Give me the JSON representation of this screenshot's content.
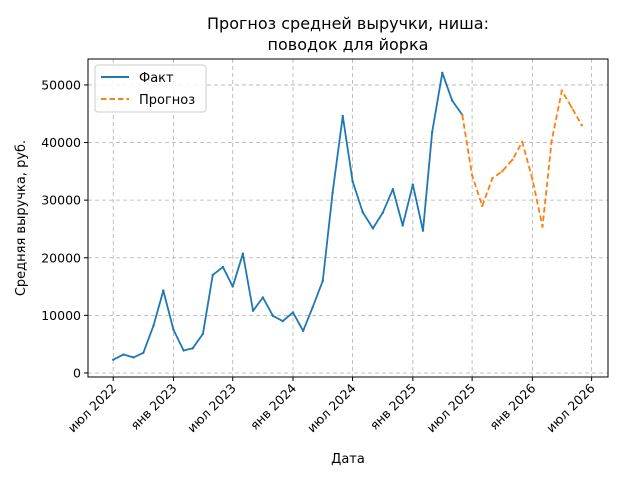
{
  "chart_data": {
    "type": "line",
    "title_lines": [
      "Прогноз средней выручки, ниша:",
      "поводок для йорка"
    ],
    "xlabel": "Дата",
    "ylabel": "Средняя выручка, руб.",
    "ylim": [
      -700,
      54500
    ],
    "xlim": [
      "2022-04-15",
      "2026-08-20"
    ],
    "grid": true,
    "legend_position": "top-left",
    "x_ticks": [
      {
        "date": "2022-07-01",
        "label": "июл 2022"
      },
      {
        "date": "2023-01-01",
        "label": "янв 2023"
      },
      {
        "date": "2023-07-01",
        "label": "июл 2023"
      },
      {
        "date": "2024-01-01",
        "label": "янв 2024"
      },
      {
        "date": "2024-07-01",
        "label": "июл 2024"
      },
      {
        "date": "2025-01-01",
        "label": "янв 2025"
      },
      {
        "date": "2025-07-01",
        "label": "июл 2025"
      },
      {
        "date": "2026-01-01",
        "label": "янв 2026"
      },
      {
        "date": "2026-07-01",
        "label": "июл 2026"
      }
    ],
    "y_ticks": [
      {
        "value": 0,
        "label": "0"
      },
      {
        "value": 10000,
        "label": "10000"
      },
      {
        "value": 20000,
        "label": "20000"
      },
      {
        "value": 30000,
        "label": "30000"
      },
      {
        "value": 40000,
        "label": "40000"
      },
      {
        "value": 50000,
        "label": "50000"
      }
    ],
    "series": [
      {
        "name": "Факт",
        "color": "#1f77b4",
        "style": "solid",
        "points": [
          {
            "x": "2022-07-01",
            "y": 2300
          },
          {
            "x": "2022-08-01",
            "y": 3200
          },
          {
            "x": "2022-09-01",
            "y": 2700
          },
          {
            "x": "2022-10-01",
            "y": 3500
          },
          {
            "x": "2022-11-01",
            "y": 8200
          },
          {
            "x": "2022-12-01",
            "y": 14300
          },
          {
            "x": "2023-01-01",
            "y": 7500
          },
          {
            "x": "2023-02-01",
            "y": 3900
          },
          {
            "x": "2023-03-01",
            "y": 4300
          },
          {
            "x": "2023-04-01",
            "y": 6800
          },
          {
            "x": "2023-05-01",
            "y": 17000
          },
          {
            "x": "2023-06-01",
            "y": 18400
          },
          {
            "x": "2023-07-01",
            "y": 15000
          },
          {
            "x": "2023-08-01",
            "y": 20700
          },
          {
            "x": "2023-09-01",
            "y": 10800
          },
          {
            "x": "2023-10-01",
            "y": 13100
          },
          {
            "x": "2023-11-01",
            "y": 9900
          },
          {
            "x": "2023-12-01",
            "y": 9000
          },
          {
            "x": "2024-01-01",
            "y": 10500
          },
          {
            "x": "2024-02-01",
            "y": 7300
          },
          {
            "x": "2024-03-01",
            "y": 11400
          },
          {
            "x": "2024-04-01",
            "y": 16000
          },
          {
            "x": "2024-05-01",
            "y": 31300
          },
          {
            "x": "2024-06-01",
            "y": 44600
          },
          {
            "x": "2024-07-01",
            "y": 33300
          },
          {
            "x": "2024-08-01",
            "y": 27900
          },
          {
            "x": "2024-09-01",
            "y": 25100
          },
          {
            "x": "2024-10-01",
            "y": 27800
          },
          {
            "x": "2024-11-01",
            "y": 31900
          },
          {
            "x": "2024-12-01",
            "y": 25600
          },
          {
            "x": "2025-01-01",
            "y": 32700
          },
          {
            "x": "2025-02-01",
            "y": 24700
          },
          {
            "x": "2025-03-01",
            "y": 41800
          },
          {
            "x": "2025-04-01",
            "y": 52100
          },
          {
            "x": "2025-05-01",
            "y": 47300
          },
          {
            "x": "2025-06-01",
            "y": 44800
          }
        ]
      },
      {
        "name": "Прогноз",
        "color": "#ff7f0e",
        "style": "dashed",
        "points": [
          {
            "x": "2025-06-01",
            "y": 44800
          },
          {
            "x": "2025-07-01",
            "y": 34300
          },
          {
            "x": "2025-08-01",
            "y": 29000
          },
          {
            "x": "2025-09-01",
            "y": 33800
          },
          {
            "x": "2025-10-01",
            "y": 35000
          },
          {
            "x": "2025-11-01",
            "y": 37000
          },
          {
            "x": "2025-12-01",
            "y": 40100
          },
          {
            "x": "2026-01-01",
            "y": 33700
          },
          {
            "x": "2026-02-01",
            "y": 25400
          },
          {
            "x": "2026-03-01",
            "y": 40300
          },
          {
            "x": "2026-04-01",
            "y": 49000
          },
          {
            "x": "2026-05-01",
            "y": 46100
          },
          {
            "x": "2026-06-01",
            "y": 43000
          }
        ]
      }
    ]
  }
}
